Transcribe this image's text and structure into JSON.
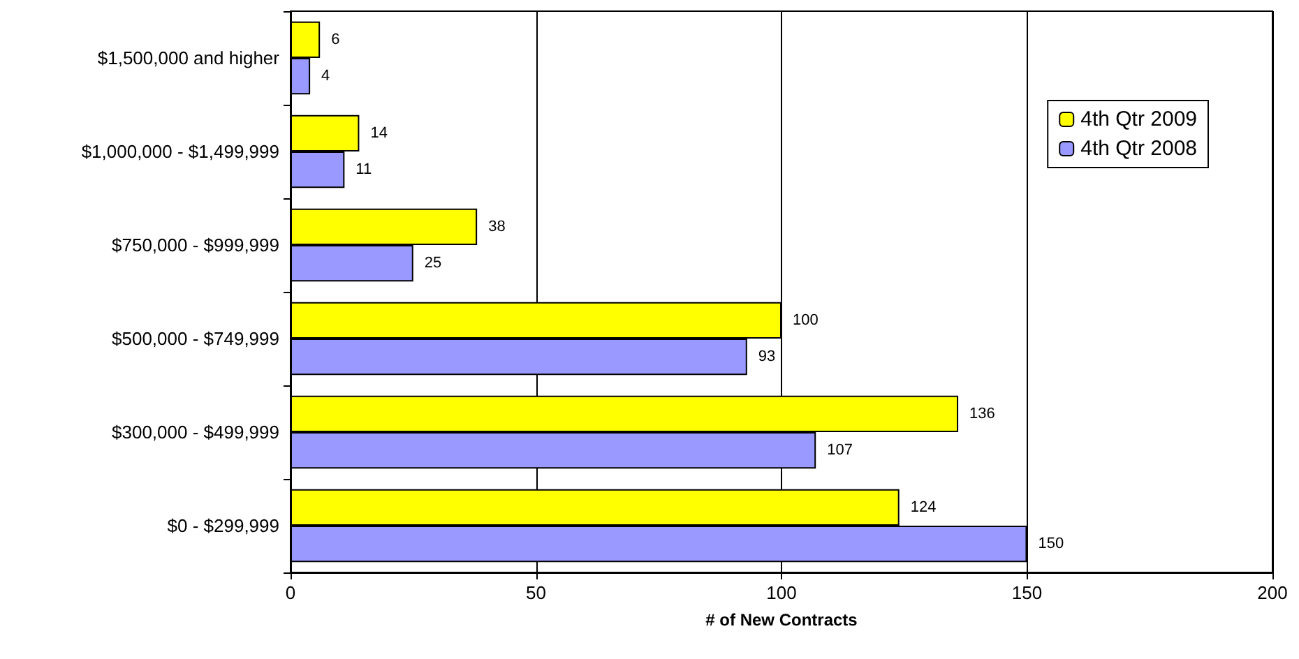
{
  "chart_data": {
    "type": "bar",
    "orientation": "horizontal",
    "xlabel": "# of New Contracts",
    "categories": [
      "$1,500,000 and higher",
      "$1,000,000 - $1,499,999",
      "$750,000 - $999,999",
      "$500,000 - $749,999",
      "$300,000 - $499,999",
      "$0 - $299,999"
    ],
    "series": [
      {
        "name": "4th Qtr 2009",
        "color": "#ffff00",
        "values": [
          6,
          14,
          38,
          100,
          136,
          124
        ]
      },
      {
        "name": "4th Qtr 2008",
        "color": "#9999ff",
        "values": [
          4,
          11,
          25,
          93,
          107,
          150
        ]
      }
    ],
    "xlim": [
      0,
      200
    ],
    "xticks": [
      0,
      50,
      100,
      150,
      200
    ],
    "grid": "x",
    "legend": "top right",
    "data_labels": true
  }
}
